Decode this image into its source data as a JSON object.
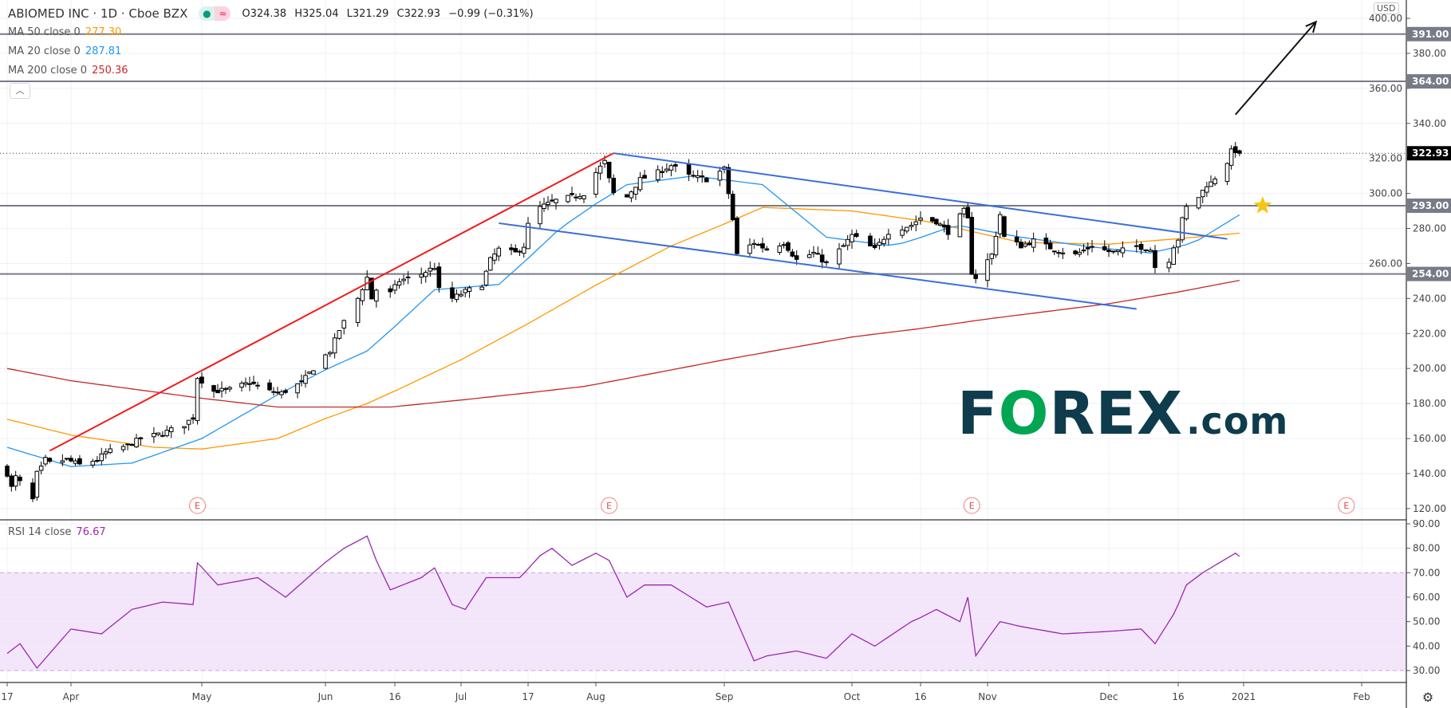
{
  "header": {
    "symbol": "ABIOMED INC · 1D · Cboe BZX",
    "open": "O324.38",
    "high": "H325.04",
    "low": "L321.29",
    "close": "C322.93",
    "change": "−0.99 (−0.31%)",
    "status_icons": [
      "market-open-dot",
      "delayed-data-approx"
    ]
  },
  "legends": [
    {
      "label": "MA 50 close 0",
      "value": "277.30",
      "color": "#ff9800"
    },
    {
      "label": "MA 20 close 0",
      "value": "287.81",
      "color": "#2196f3"
    },
    {
      "label": "MA 200 close 0",
      "value": "250.36",
      "color": "#c62828"
    }
  ],
  "rsi_legend": {
    "label": "RSI 14 close",
    "value": "76.67",
    "color": "#9c27b0"
  },
  "currency": "USD",
  "collapse_icon": "chevron-up",
  "settings_icon": "gear-icon",
  "watermark": {
    "f": "F",
    "o": "O",
    "rex": "REX",
    "com": ".com"
  },
  "chart_data": {
    "type": "candlestick",
    "title": "ABIOMED INC · 1D · Cboe BZX",
    "price_axis": {
      "ticks": [
        120,
        140,
        160,
        180,
        200,
        220,
        240,
        260,
        280,
        300,
        320,
        340,
        360,
        380,
        400
      ],
      "range": [
        120,
        400
      ]
    },
    "rsi_axis": {
      "ticks": [
        30,
        40,
        50,
        60,
        70,
        80,
        90
      ],
      "range": [
        28,
        92
      ],
      "band": [
        30,
        70
      ]
    },
    "time_ticks": [
      {
        "label": "17",
        "date": "2020-03-17"
      },
      {
        "label": "Apr",
        "date": "2020-04-01"
      },
      {
        "label": "May",
        "date": "2020-05-01"
      },
      {
        "label": "Jun",
        "date": "2020-06-01"
      },
      {
        "label": "16",
        "date": "2020-06-16"
      },
      {
        "label": "Jul",
        "date": "2020-07-01"
      },
      {
        "label": "17",
        "date": "2020-07-17"
      },
      {
        "label": "Aug",
        "date": "2020-08-03"
      },
      {
        "label": "Sep",
        "date": "2020-09-01"
      },
      {
        "label": "Oct",
        "date": "2020-10-01"
      },
      {
        "label": "16",
        "date": "2020-10-16"
      },
      {
        "label": "Nov",
        "date": "2020-11-02"
      },
      {
        "label": "Dec",
        "date": "2020-12-01"
      },
      {
        "label": "16",
        "date": "2020-12-16"
      },
      {
        "label": "2021",
        "date": "2021-01-01"
      },
      {
        "label": "Feb",
        "date": "2021-02-01"
      }
    ],
    "last_bar": {
      "date": "2020-12-31",
      "open": 324.38,
      "high": 325.04,
      "low": 321.29,
      "close": 322.93
    },
    "approx_closes": [
      [
        "2020-03-17",
        140
      ],
      [
        "2020-03-18",
        132
      ],
      [
        "2020-03-19",
        138
      ],
      [
        "2020-03-20",
        135
      ],
      [
        "2020-03-23",
        125
      ],
      [
        "2020-03-24",
        140
      ],
      [
        "2020-03-25",
        143
      ],
      [
        "2020-03-26",
        148
      ],
      [
        "2020-03-27",
        146
      ],
      [
        "2020-03-31",
        148
      ],
      [
        "2020-04-03",
        145
      ],
      [
        "2020-04-07",
        148
      ],
      [
        "2020-04-09",
        152
      ],
      [
        "2020-04-14",
        156
      ],
      [
        "2020-04-17",
        160
      ],
      [
        "2020-04-22",
        163
      ],
      [
        "2020-04-27",
        168
      ],
      [
        "2020-04-29",
        172
      ],
      [
        "2020-04-30",
        195
      ],
      [
        "2020-05-04",
        187
      ],
      [
        "2020-05-08",
        188
      ],
      [
        "2020-05-13",
        192
      ],
      [
        "2020-05-18",
        187
      ],
      [
        "2020-05-21",
        186
      ],
      [
        "2020-05-26",
        192
      ],
      [
        "2020-05-29",
        200
      ],
      [
        "2020-06-02",
        210
      ],
      [
        "2020-06-04",
        222
      ],
      [
        "2020-06-08",
        240
      ],
      [
        "2020-06-10",
        252
      ],
      [
        "2020-06-11",
        240
      ],
      [
        "2020-06-12",
        245
      ],
      [
        "2020-06-15",
        243
      ],
      [
        "2020-06-17",
        250
      ],
      [
        "2020-06-22",
        254
      ],
      [
        "2020-06-25",
        258
      ],
      [
        "2020-06-26",
        245
      ],
      [
        "2020-06-29",
        240
      ],
      [
        "2020-07-02",
        244
      ],
      [
        "2020-07-06",
        248
      ],
      [
        "2020-07-08",
        262
      ],
      [
        "2020-07-10",
        268
      ],
      [
        "2020-07-14",
        266
      ],
      [
        "2020-07-16",
        270
      ],
      [
        "2020-07-17",
        282
      ],
      [
        "2020-07-20",
        292
      ],
      [
        "2020-07-24",
        296
      ],
      [
        "2020-07-28",
        298
      ],
      [
        "2020-07-31",
        300
      ],
      [
        "2020-08-03",
        312
      ],
      [
        "2020-08-05",
        318
      ],
      [
        "2020-08-06",
        308
      ],
      [
        "2020-08-07",
        300
      ],
      [
        "2020-08-10",
        298
      ],
      [
        "2020-08-13",
        308
      ],
      [
        "2020-08-17",
        312
      ],
      [
        "2020-08-20",
        316
      ],
      [
        "2020-08-24",
        310
      ],
      [
        "2020-08-28",
        308
      ],
      [
        "2020-09-01",
        314
      ],
      [
        "2020-09-02",
        300
      ],
      [
        "2020-09-03",
        285
      ],
      [
        "2020-09-04",
        265
      ],
      [
        "2020-09-08",
        272
      ],
      [
        "2020-09-11",
        268
      ],
      [
        "2020-09-15",
        272
      ],
      [
        "2020-09-18",
        262
      ],
      [
        "2020-09-22",
        266
      ],
      [
        "2020-09-25",
        260
      ],
      [
        "2020-09-29",
        270
      ],
      [
        "2020-10-01",
        276
      ],
      [
        "2020-10-06",
        268
      ],
      [
        "2020-10-09",
        278
      ],
      [
        "2020-10-14",
        282
      ],
      [
        "2020-10-16",
        286
      ],
      [
        "2020-10-20",
        284
      ],
      [
        "2020-10-23",
        278
      ],
      [
        "2020-10-27",
        290
      ],
      [
        "2020-10-28",
        285
      ],
      [
        "2020-10-29",
        255
      ],
      [
        "2020-10-30",
        252
      ],
      [
        "2020-11-03",
        265
      ],
      [
        "2020-11-05",
        288
      ],
      [
        "2020-11-06",
        275
      ],
      [
        "2020-11-10",
        270
      ],
      [
        "2020-11-13",
        273
      ],
      [
        "2020-11-18",
        268
      ],
      [
        "2020-11-23",
        265
      ],
      [
        "2020-11-27",
        270
      ],
      [
        "2020-12-02",
        266
      ],
      [
        "2020-12-07",
        270
      ],
      [
        "2020-12-10",
        268
      ],
      [
        "2020-12-11",
        258
      ],
      [
        "2020-12-14",
        262
      ],
      [
        "2020-12-15",
        270
      ],
      [
        "2020-12-16",
        274
      ],
      [
        "2020-12-17",
        285
      ],
      [
        "2020-12-18",
        292
      ],
      [
        "2020-12-21",
        298
      ],
      [
        "2020-12-23",
        305
      ],
      [
        "2020-12-24",
        306
      ],
      [
        "2020-12-28",
        318
      ],
      [
        "2020-12-29",
        324
      ],
      [
        "2020-12-30",
        324.4
      ],
      [
        "2020-12-31",
        322.93
      ]
    ],
    "ma": [
      {
        "name": "MA 50",
        "color": "#ff9800",
        "points": [
          [
            "2020-03-17",
            171
          ],
          [
            "2020-04-01",
            162
          ],
          [
            "2020-04-20",
            155
          ],
          [
            "2020-05-01",
            154
          ],
          [
            "2020-05-20",
            160
          ],
          [
            "2020-06-10",
            180
          ],
          [
            "2020-07-01",
            205
          ],
          [
            "2020-08-01",
            245
          ],
          [
            "2020-08-20",
            270
          ],
          [
            "2020-09-10",
            292
          ],
          [
            "2020-10-01",
            290
          ],
          [
            "2020-10-20",
            283
          ],
          [
            "2020-11-10",
            272
          ],
          [
            "2020-12-01",
            271
          ],
          [
            "2020-12-31",
            277.3
          ]
        ]
      },
      {
        "name": "MA 20",
        "color": "#2196f3",
        "points": [
          [
            "2020-03-17",
            155
          ],
          [
            "2020-04-01",
            144
          ],
          [
            "2020-04-15",
            146
          ],
          [
            "2020-05-01",
            160
          ],
          [
            "2020-05-20",
            185
          ],
          [
            "2020-06-10",
            210
          ],
          [
            "2020-06-25",
            245
          ],
          [
            "2020-07-10",
            248
          ],
          [
            "2020-07-25",
            280
          ],
          [
            "2020-08-10",
            305
          ],
          [
            "2020-08-25",
            310
          ],
          [
            "2020-09-10",
            305
          ],
          [
            "2020-09-25",
            275
          ],
          [
            "2020-10-10",
            270
          ],
          [
            "2020-10-25",
            282
          ],
          [
            "2020-11-10",
            275
          ],
          [
            "2020-11-25",
            270
          ],
          [
            "2020-12-10",
            266
          ],
          [
            "2020-12-20",
            272
          ],
          [
            "2020-12-31",
            287.81
          ]
        ]
      },
      {
        "name": "MA 200",
        "color": "#c62828",
        "points": [
          [
            "2020-03-17",
            200
          ],
          [
            "2020-04-01",
            193
          ],
          [
            "2020-05-01",
            183
          ],
          [
            "2020-05-20",
            178
          ],
          [
            "2020-06-15",
            178
          ],
          [
            "2020-07-01",
            182
          ],
          [
            "2020-08-01",
            190
          ],
          [
            "2020-09-01",
            205
          ],
          [
            "2020-10-01",
            218
          ],
          [
            "2020-11-01",
            228
          ],
          [
            "2020-12-01",
            237
          ],
          [
            "2020-12-31",
            250.36
          ]
        ]
      }
    ],
    "rsi": {
      "name": "RSI 14",
      "color": "#9c27b0",
      "points": [
        [
          "2020-03-17",
          37
        ],
        [
          "2020-03-20",
          41
        ],
        [
          "2020-03-24",
          31
        ],
        [
          "2020-04-01",
          47
        ],
        [
          "2020-04-08",
          45
        ],
        [
          "2020-04-15",
          55
        ],
        [
          "2020-04-22",
          58
        ],
        [
          "2020-04-29",
          57
        ],
        [
          "2020-04-30",
          74
        ],
        [
          "2020-05-05",
          65
        ],
        [
          "2020-05-15",
          68
        ],
        [
          "2020-05-22",
          60
        ],
        [
          "2020-05-29",
          70
        ],
        [
          "2020-06-05",
          80
        ],
        [
          "2020-06-10",
          85
        ],
        [
          "2020-06-12",
          75
        ],
        [
          "2020-06-15",
          63
        ],
        [
          "2020-06-22",
          68
        ],
        [
          "2020-06-25",
          72
        ],
        [
          "2020-06-29",
          57
        ],
        [
          "2020-07-02",
          55
        ],
        [
          "2020-07-07",
          68
        ],
        [
          "2020-07-15",
          68
        ],
        [
          "2020-07-20",
          77
        ],
        [
          "2020-07-23",
          80
        ],
        [
          "2020-07-28",
          73
        ],
        [
          "2020-08-03",
          78
        ],
        [
          "2020-08-06",
          75
        ],
        [
          "2020-08-10",
          60
        ],
        [
          "2020-08-14",
          65
        ],
        [
          "2020-08-20",
          65
        ],
        [
          "2020-08-28",
          56
        ],
        [
          "2020-09-02",
          58
        ],
        [
          "2020-09-08",
          34
        ],
        [
          "2020-09-11",
          36
        ],
        [
          "2020-09-18",
          38
        ],
        [
          "2020-09-25",
          35
        ],
        [
          "2020-10-01",
          45
        ],
        [
          "2020-10-06",
          40
        ],
        [
          "2020-10-14",
          50
        ],
        [
          "2020-10-20",
          55
        ],
        [
          "2020-10-26",
          50
        ],
        [
          "2020-10-28",
          60
        ],
        [
          "2020-10-30",
          36
        ],
        [
          "2020-11-05",
          50
        ],
        [
          "2020-11-10",
          48
        ],
        [
          "2020-11-20",
          45
        ],
        [
          "2020-12-01",
          46
        ],
        [
          "2020-12-08",
          47
        ],
        [
          "2020-12-11",
          41
        ],
        [
          "2020-12-15",
          53
        ],
        [
          "2020-12-18",
          65
        ],
        [
          "2020-12-22",
          70
        ],
        [
          "2020-12-28",
          76
        ],
        [
          "2020-12-30",
          78
        ],
        [
          "2020-12-31",
          76.67
        ]
      ]
    },
    "horizontal_levels": [
      {
        "price": 391,
        "label": "391.00"
      },
      {
        "price": 364,
        "label": "364.00"
      },
      {
        "price": 293,
        "label": "293.00"
      },
      {
        "price": 254,
        "label": "254.00"
      }
    ],
    "last_price": {
      "price": 322.93,
      "label": "322.93"
    },
    "trendlines": [
      {
        "color": "#f21b1b",
        "from": [
          "2020-03-27",
          153
        ],
        "to": [
          "2020-08-07",
          323
        ]
      },
      {
        "color": "#3a6fd8",
        "from": [
          "2020-08-07",
          323
        ],
        "to": [
          "2020-12-28",
          274
        ]
      },
      {
        "color": "#3a6fd8",
        "from": [
          "2020-07-10",
          283
        ],
        "to": [
          "2020-12-07",
          234
        ]
      }
    ],
    "arrow": {
      "color": "#111111",
      "from": [
        "2020-12-30",
        345
      ],
      "to": [
        "2021-01-20",
        398
      ]
    },
    "star": {
      "color": "#f5c518",
      "at": [
        "2021-01-06",
        293
      ]
    },
    "earnings_markers": {
      "label": "E",
      "dates": [
        "2020-04-30",
        "2020-08-06",
        "2020-10-29",
        "2021-01-28"
      ]
    }
  }
}
